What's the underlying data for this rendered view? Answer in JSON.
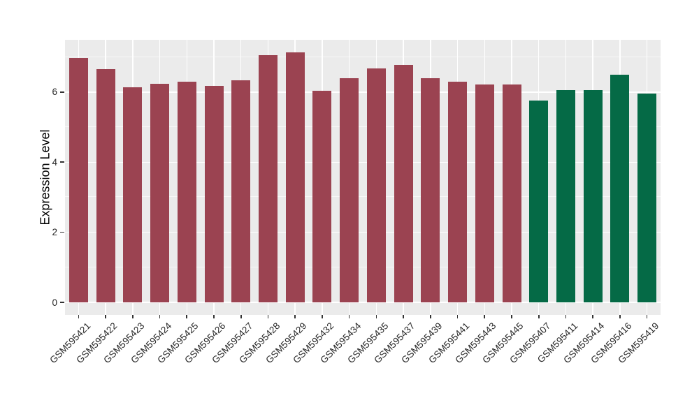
{
  "figure": {
    "background": "#FFFFFF",
    "panel_background": "#EBEBEB",
    "gridline_color": "#FFFFFF",
    "tick_color": "#333333",
    "tick_label_color": "#262626"
  },
  "chart_data": {
    "type": "bar",
    "title": "",
    "xlabel": "",
    "ylabel": "Expression Level",
    "ylim": [
      0,
      7.49
    ],
    "yticks": [
      0,
      2,
      4,
      6
    ],
    "yminor": [
      1,
      3,
      5,
      7
    ],
    "grid": "on",
    "legend_position": "none",
    "categories": [
      "GSM595421",
      "GSM595422",
      "GSM595423",
      "GSM595424",
      "GSM595425",
      "GSM595426",
      "GSM595427",
      "GSM595428",
      "GSM595429",
      "GSM595432",
      "GSM595434",
      "GSM595435",
      "GSM595437",
      "GSM595439",
      "GSM595441",
      "GSM595443",
      "GSM595445",
      "GSM595407",
      "GSM595411",
      "GSM595414",
      "GSM595416",
      "GSM595419"
    ],
    "values": [
      6.97,
      6.65,
      6.14,
      6.23,
      6.29,
      6.17,
      6.34,
      7.05,
      7.13,
      6.04,
      6.4,
      6.67,
      6.78,
      6.4,
      6.3,
      6.22,
      6.21,
      5.76,
      6.06,
      6.06,
      6.49,
      5.96
    ],
    "groups": [
      "red",
      "red",
      "red",
      "red",
      "red",
      "red",
      "red",
      "red",
      "red",
      "red",
      "red",
      "red",
      "red",
      "red",
      "red",
      "red",
      "red",
      "green",
      "green",
      "green",
      "green",
      "green"
    ],
    "group_colors": {
      "red": "#9B4351",
      "green": "#056A46"
    }
  }
}
